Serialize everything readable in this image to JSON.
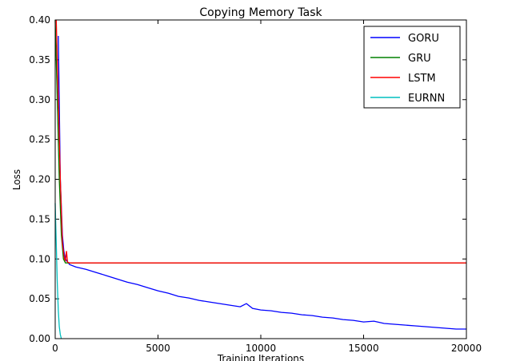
{
  "chart_data": {
    "type": "line",
    "title": "Copying Memory Task",
    "xlabel": "Training Iterations",
    "ylabel": "Loss",
    "xlim": [
      0,
      20000
    ],
    "xticks": [
      0,
      5000,
      10000,
      15000,
      20000
    ],
    "ylim": [
      0,
      0.4
    ],
    "yticks": [
      {
        "value": 0,
        "label": "0.00"
      },
      0.05,
      {
        "value": 0.1,
        "label": "0.10"
      },
      0.15,
      {
        "value": 0.2,
        "label": "0.20"
      },
      0.25,
      {
        "value": 0.3,
        "label": "0.30"
      },
      0.35,
      {
        "value": 0.4,
        "label": "0.40"
      }
    ],
    "legend": "upper right",
    "series": [
      {
        "name": "GORU",
        "color": "#0000ff",
        "x": [
          150,
          250,
          350,
          420,
          500,
          700,
          1000,
          1500,
          2000,
          2500,
          3000,
          3500,
          4000,
          4500,
          5000,
          5500,
          6000,
          6500,
          7000,
          7500,
          8000,
          8500,
          9000,
          9300,
          9600,
          10000,
          10500,
          11000,
          11500,
          12000,
          12500,
          13000,
          13500,
          14000,
          14500,
          15000,
          15500,
          16000,
          16500,
          17000,
          17500,
          18000,
          18500,
          19000,
          19500,
          20000
        ],
        "values": [
          0.38,
          0.2,
          0.13,
          0.11,
          0.1,
          0.093,
          0.09,
          0.087,
          0.083,
          0.079,
          0.075,
          0.071,
          0.068,
          0.064,
          0.06,
          0.057,
          0.053,
          0.051,
          0.048,
          0.046,
          0.044,
          0.042,
          0.04,
          0.044,
          0.038,
          0.036,
          0.035,
          0.033,
          0.032,
          0.03,
          0.029,
          0.027,
          0.026,
          0.024,
          0.023,
          0.021,
          0.022,
          0.019,
          0.018,
          0.017,
          0.016,
          0.015,
          0.014,
          0.013,
          0.012,
          0.012
        ]
      },
      {
        "name": "GRU",
        "color": "#008000",
        "x": [
          0,
          100,
          200,
          300,
          400,
          500,
          1000,
          20000
        ],
        "values": [
          0.4,
          0.3,
          0.2,
          0.13,
          0.1,
          0.095,
          0.095,
          0.095
        ]
      },
      {
        "name": "LSTM",
        "color": "#ff0000",
        "x": [
          50,
          150,
          250,
          350,
          450,
          500,
          550,
          600,
          700,
          1000,
          20000
        ],
        "values": [
          0.4,
          0.3,
          0.2,
          0.12,
          0.1,
          0.098,
          0.11,
          0.096,
          0.095,
          0.095,
          0.095
        ]
      },
      {
        "name": "EURNN",
        "color": "#00bfbf",
        "x": [
          0,
          50,
          100,
          150,
          200,
          250,
          300
        ],
        "values": [
          0.17,
          0.12,
          0.07,
          0.035,
          0.015,
          0.005,
          0
        ]
      }
    ]
  }
}
